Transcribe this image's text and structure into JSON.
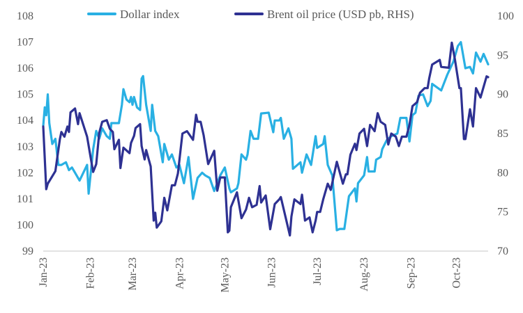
{
  "chart_data": {
    "type": "line",
    "title": "",
    "x_unit": "days since 2023-01-01",
    "x_tick_labels": [
      {
        "day": 0,
        "label": "Jan-23"
      },
      {
        "day": 31,
        "label": "Feb-23"
      },
      {
        "day": 59,
        "label": "Mar-23"
      },
      {
        "day": 90,
        "label": "Apr-23"
      },
      {
        "day": 120,
        "label": "May-23"
      },
      {
        "day": 151,
        "label": "Jun-23"
      },
      {
        "day": 181,
        "label": "Jul-23"
      },
      {
        "day": 212,
        "label": "Aug-23"
      },
      {
        "day": 243,
        "label": "Sep-23"
      },
      {
        "day": 273,
        "label": "Oct-23"
      }
    ],
    "xlim": [
      0,
      294
    ],
    "y_left": {
      "lim": [
        99,
        108
      ],
      "ticks": [
        "99",
        "100",
        "101",
        "102",
        "103",
        "104",
        "105",
        "106",
        "107",
        "108"
      ]
    },
    "y_right": {
      "lim": [
        70,
        100
      ],
      "ticks": [
        "70",
        "75",
        "80",
        "85",
        "90",
        "95",
        "100"
      ]
    },
    "grid": false,
    "legend_position": "top",
    "series": [
      {
        "name": "Dollar index",
        "axis": "left",
        "color": "#29b0e3",
        "points": [
          [
            0,
            103.8
          ],
          [
            1,
            104.5
          ],
          [
            2,
            104.2
          ],
          [
            3,
            105.0
          ],
          [
            4,
            103.9
          ],
          [
            6,
            103.1
          ],
          [
            8,
            103.3
          ],
          [
            10,
            102.3
          ],
          [
            12,
            102.3
          ],
          [
            15,
            102.4
          ],
          [
            17,
            102.1
          ],
          [
            19,
            102.2
          ],
          [
            21,
            102.0
          ],
          [
            24,
            101.7
          ],
          [
            29,
            102.3
          ],
          [
            30,
            101.2
          ],
          [
            33,
            102.9
          ],
          [
            35,
            103.6
          ],
          [
            37,
            103.3
          ],
          [
            39,
            103.7
          ],
          [
            42,
            103.4
          ],
          [
            44,
            103.3
          ],
          [
            45,
            103.9
          ],
          [
            50,
            103.9
          ],
          [
            52,
            104.6
          ],
          [
            53,
            105.2
          ],
          [
            55,
            104.8
          ],
          [
            57,
            104.7
          ],
          [
            58,
            104.9
          ],
          [
            59,
            104.6
          ],
          [
            60,
            104.9
          ],
          [
            62,
            104.5
          ],
          [
            64,
            104.4
          ],
          [
            65,
            105.6
          ],
          [
            66,
            105.7
          ],
          [
            68,
            104.6
          ],
          [
            71,
            103.6
          ],
          [
            72,
            104.6
          ],
          [
            74,
            103.6
          ],
          [
            76,
            103.4
          ],
          [
            79,
            102.4
          ],
          [
            80,
            103.1
          ],
          [
            81,
            102.9
          ],
          [
            83,
            102.5
          ],
          [
            85,
            102.7
          ],
          [
            88,
            102.2
          ],
          [
            90,
            102.3
          ],
          [
            93,
            101.6
          ],
          [
            96,
            102.6
          ],
          [
            99,
            101.0
          ],
          [
            102,
            101.8
          ],
          [
            105,
            102.0
          ],
          [
            107,
            101.9
          ],
          [
            110,
            101.8
          ],
          [
            113,
            101.3
          ],
          [
            117,
            101.9
          ],
          [
            120,
            102.2
          ],
          [
            123,
            101.4
          ],
          [
            124,
            101.25
          ],
          [
            128,
            101.4
          ],
          [
            129,
            101.6
          ],
          [
            131,
            102.7
          ],
          [
            134,
            102.5
          ],
          [
            135,
            102.7
          ],
          [
            137,
            103.6
          ],
          [
            139,
            103.3
          ],
          [
            142,
            103.3
          ],
          [
            144,
            104.27
          ],
          [
            149,
            104.3
          ],
          [
            152,
            103.55
          ],
          [
            153,
            104.0
          ],
          [
            156,
            104.0
          ],
          [
            157,
            104.1
          ],
          [
            159,
            103.3
          ],
          [
            162,
            103.7
          ],
          [
            164,
            103.3
          ],
          [
            165,
            102.15
          ],
          [
            170,
            102.4
          ],
          [
            171,
            102.0
          ],
          [
            174,
            102.7
          ],
          [
            177,
            102.3
          ],
          [
            180,
            103.4
          ],
          [
            181,
            102.95
          ],
          [
            185,
            103.1
          ],
          [
            186,
            103.4
          ],
          [
            188,
            102.3
          ],
          [
            191,
            101.9
          ],
          [
            194,
            99.8
          ],
          [
            196,
            99.85
          ],
          [
            199,
            99.85
          ],
          [
            202,
            101.1
          ],
          [
            206,
            101.4
          ],
          [
            207,
            100.9
          ],
          [
            208,
            101.6
          ],
          [
            212,
            101.9
          ],
          [
            214,
            102.6
          ],
          [
            215,
            102.05
          ],
          [
            219,
            102.05
          ],
          [
            220,
            102.5
          ],
          [
            223,
            102.6
          ],
          [
            224,
            102.9
          ],
          [
            227,
            103.25
          ],
          [
            230,
            103.4
          ],
          [
            234,
            103.5
          ],
          [
            236,
            104.1
          ],
          [
            240,
            104.1
          ],
          [
            242,
            103.2
          ],
          [
            244,
            104.2
          ],
          [
            246,
            104.3
          ],
          [
            248,
            104.95
          ],
          [
            251,
            105.0
          ],
          [
            254,
            104.55
          ],
          [
            256,
            104.75
          ],
          [
            257,
            105.4
          ],
          [
            263,
            105.15
          ],
          [
            267,
            105.75
          ],
          [
            271,
            106.25
          ],
          [
            274,
            106.85
          ],
          [
            276,
            107.0
          ],
          [
            279,
            106.0
          ],
          [
            282,
            106.05
          ],
          [
            284,
            105.8
          ],
          [
            286,
            106.6
          ],
          [
            289,
            106.25
          ],
          [
            291,
            106.55
          ],
          [
            294,
            106.15
          ]
        ]
      },
      {
        "name": "Brent oil price (USD pb, RHS)",
        "axis": "right",
        "color": "#2e3192",
        "points": [
          [
            0,
            85.9
          ],
          [
            2,
            77.9
          ],
          [
            3,
            78.6
          ],
          [
            8,
            80.2
          ],
          [
            11,
            84.3
          ],
          [
            12,
            85.2
          ],
          [
            14,
            84.6
          ],
          [
            16,
            85.9
          ],
          [
            17,
            85.2
          ],
          [
            18,
            87.7
          ],
          [
            21,
            88.2
          ],
          [
            23,
            86.2
          ],
          [
            24,
            87.6
          ],
          [
            29,
            84.6
          ],
          [
            31,
            82.3
          ],
          [
            33,
            80.1
          ],
          [
            35,
            81.1
          ],
          [
            37,
            85.1
          ],
          [
            39,
            86.5
          ],
          [
            42,
            86.7
          ],
          [
            44,
            85.6
          ],
          [
            46,
            85.2
          ],
          [
            47,
            83.0
          ],
          [
            50,
            84.2
          ],
          [
            51,
            80.6
          ],
          [
            53,
            83.2
          ],
          [
            57,
            82.5
          ],
          [
            58,
            83.8
          ],
          [
            60,
            84.7
          ],
          [
            61,
            85.7
          ],
          [
            64,
            86.2
          ],
          [
            65,
            83.4
          ],
          [
            67,
            81.7
          ],
          [
            68,
            82.9
          ],
          [
            71,
            80.8
          ],
          [
            73,
            73.9
          ],
          [
            74,
            74.9
          ],
          [
            75,
            73.0
          ],
          [
            78,
            73.8
          ],
          [
            80,
            76.8
          ],
          [
            82,
            75.2
          ],
          [
            85,
            78.4
          ],
          [
            87,
            78.4
          ],
          [
            89,
            79.9
          ],
          [
            92,
            85.0
          ],
          [
            95,
            85.3
          ],
          [
            99,
            84.2
          ],
          [
            101,
            87.4
          ],
          [
            102,
            86.5
          ],
          [
            104,
            86.5
          ],
          [
            106,
            84.8
          ],
          [
            109,
            81.1
          ],
          [
            113,
            82.8
          ],
          [
            115,
            77.7
          ],
          [
            117,
            79.4
          ],
          [
            120,
            79.4
          ],
          [
            122,
            72.4
          ],
          [
            123,
            72.6
          ],
          [
            124,
            75.6
          ],
          [
            128,
            77.5
          ],
          [
            131,
            74.2
          ],
          [
            134,
            75.3
          ],
          [
            136,
            76.8
          ],
          [
            138,
            75.6
          ],
          [
            141,
            75.9
          ],
          [
            143,
            78.3
          ],
          [
            144,
            76.2
          ],
          [
            147,
            77.1
          ],
          [
            150,
            72.8
          ],
          [
            153,
            76.0
          ],
          [
            156,
            76.6
          ],
          [
            157,
            76.9
          ],
          [
            163,
            72.0
          ],
          [
            164,
            74.4
          ],
          [
            166,
            76.6
          ],
          [
            170,
            76.0
          ],
          [
            171,
            77.2
          ],
          [
            173,
            73.9
          ],
          [
            176,
            74.3
          ],
          [
            178,
            72.4
          ],
          [
            180,
            73.9
          ],
          [
            181,
            75.0
          ],
          [
            183,
            75.0
          ],
          [
            185,
            76.6
          ],
          [
            188,
            78.6
          ],
          [
            190,
            77.8
          ],
          [
            194,
            81.4
          ],
          [
            198,
            78.6
          ],
          [
            200,
            79.8
          ],
          [
            201,
            79.8
          ],
          [
            203,
            82.3
          ],
          [
            206,
            83.7
          ],
          [
            207,
            82.9
          ],
          [
            209,
            85.0
          ],
          [
            212,
            85.6
          ],
          [
            214,
            83.4
          ],
          [
            216,
            86.1
          ],
          [
            219,
            85.3
          ],
          [
            221,
            87.6
          ],
          [
            223,
            86.5
          ],
          [
            226,
            86.1
          ],
          [
            228,
            83.6
          ],
          [
            230,
            85.0
          ],
          [
            233,
            84.6
          ],
          [
            235,
            83.4
          ],
          [
            237,
            84.6
          ],
          [
            240,
            84.6
          ],
          [
            242,
            86.1
          ],
          [
            244,
            88.5
          ],
          [
            247,
            89.0
          ],
          [
            249,
            90.2
          ],
          [
            252,
            90.8
          ],
          [
            254,
            90.8
          ],
          [
            255,
            92.0
          ],
          [
            257,
            93.8
          ],
          [
            262,
            94.4
          ],
          [
            263,
            93.5
          ],
          [
            268,
            93.4
          ],
          [
            270,
            96.6
          ],
          [
            272,
            94.5
          ],
          [
            275,
            90.8
          ],
          [
            276,
            90.8
          ],
          [
            278,
            84.3
          ],
          [
            279,
            84.3
          ],
          [
            282,
            88.1
          ],
          [
            284,
            85.9
          ],
          [
            286,
            90.8
          ],
          [
            289,
            89.6
          ],
          [
            293,
            92.3
          ],
          [
            294,
            92.2
          ]
        ]
      }
    ]
  }
}
